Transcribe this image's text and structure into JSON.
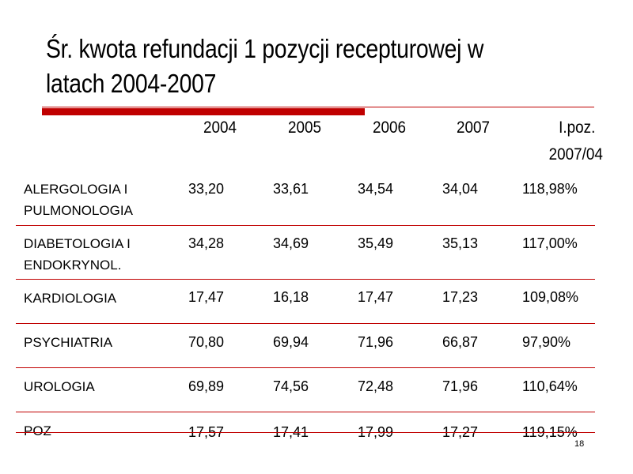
{
  "title": "Śr. kwota refundacji 1 pozycji recepturowej w latach 2004-2007",
  "table": {
    "headers": [
      "2004",
      "2005",
      "2006",
      "2007"
    ],
    "index_header": [
      "I.poz.",
      "2007/04"
    ],
    "rows": [
      {
        "label": [
          "ALERGOLOGIA I",
          "PULMONOLOGIA"
        ],
        "values": [
          "33,20",
          "33,61",
          "34,54",
          "34,04",
          "118,98%"
        ]
      },
      {
        "label": [
          "DIABETOLOGIA I",
          "ENDOKRYNOL."
        ],
        "values": [
          "34,28",
          "34,69",
          "35,49",
          "35,13",
          "117,00%"
        ]
      },
      {
        "label": [
          "KARDIOLOGIA"
        ],
        "values": [
          "17,47",
          "16,18",
          "17,47",
          "17,23",
          "109,08%"
        ]
      },
      {
        "label": [
          "PSYCHIATRIA"
        ],
        "values": [
          "70,80",
          "69,94",
          "71,96",
          "66,87",
          "97,90%"
        ]
      },
      {
        "label": [
          "UROLOGIA"
        ],
        "values": [
          "69,89",
          "74,56",
          "72,48",
          "71,96",
          "110,64%"
        ]
      },
      {
        "label": [
          "POZ"
        ],
        "values": [
          "17,57",
          "17,41",
          "17,99",
          "17,27",
          "119,15%"
        ]
      }
    ]
  },
  "slide_number": "18",
  "colors": {
    "accent_red": "#c00000"
  }
}
